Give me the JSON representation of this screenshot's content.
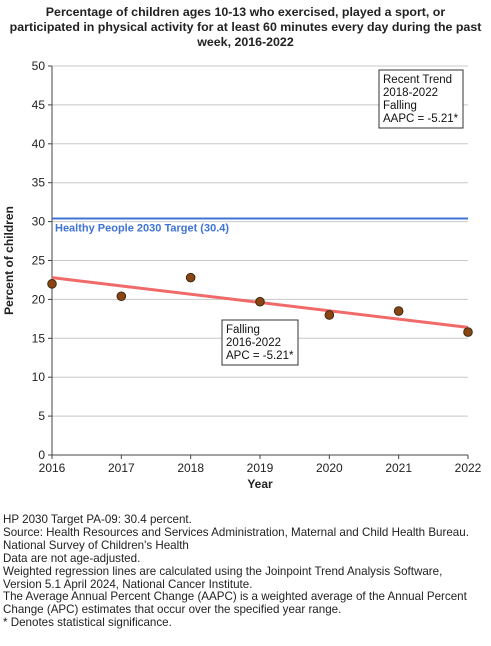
{
  "title_lines": [
    "Percentage of children ages 10-13 who exercised, played a sport, or",
    "participated in physical activity for at least 60 minutes every day during the past",
    "week, 2016-2022"
  ],
  "chart_data": {
    "type": "scatter",
    "title": "Percentage of children ages 10-13 who exercised, played a sport, or participated in physical activity for at least 60 minutes every day during the past week, 2016-2022",
    "xlabel": "Year",
    "ylabel": "Percent of children",
    "xlim": [
      2016,
      2022
    ],
    "ylim": [
      0,
      50
    ],
    "x_ticks": [
      "2016",
      "2017",
      "2018",
      "2019",
      "2020",
      "2021",
      "2022"
    ],
    "y_ticks": [
      "0",
      "5",
      "10",
      "15",
      "20",
      "25",
      "30",
      "35",
      "40",
      "45",
      "50"
    ],
    "grid": true,
    "series": [
      {
        "x": [
          2016,
          2017,
          2018,
          2019,
          2020,
          2021,
          2022
        ],
        "values": [
          22.0,
          20.4,
          22.8,
          19.7,
          18.0,
          18.5,
          15.8
        ],
        "color": "#8b4513"
      }
    ],
    "trend": {
      "x": [
        2016,
        2022
      ],
      "values": [
        22.8,
        16.4
      ],
      "color": "#f06a6a"
    },
    "target": {
      "value": 30.4,
      "label": "Healthy People 2030 Target (30.4)",
      "color": "#3f74d6"
    },
    "annotations": [
      {
        "lines": [
          "Recent Trend",
          "2018-2022",
          "Falling",
          "AAPC = -5.21*"
        ]
      },
      {
        "lines": [
          "Falling",
          "2016-2022",
          "APC = -5.21*"
        ]
      }
    ]
  },
  "notes": [
    "HP 2030 Target PA-09: 30.4 percent.",
    "Source: Health Resources and Services Administration, Maternal and Child Health Bureau.",
    "National Survey of Children's Health",
    "Data are not age-adjusted.",
    "Weighted regression lines are calculated using the Joinpoint Trend Analysis Software,",
    "Version 5.1 April 2024, National Cancer Institute.",
    "The Average Annual Percent Change (AAPC) is a weighted average of the Annual Percent",
    "Change (APC) estimates that occur over the specified year range.",
    "* Denotes statistical significance."
  ]
}
